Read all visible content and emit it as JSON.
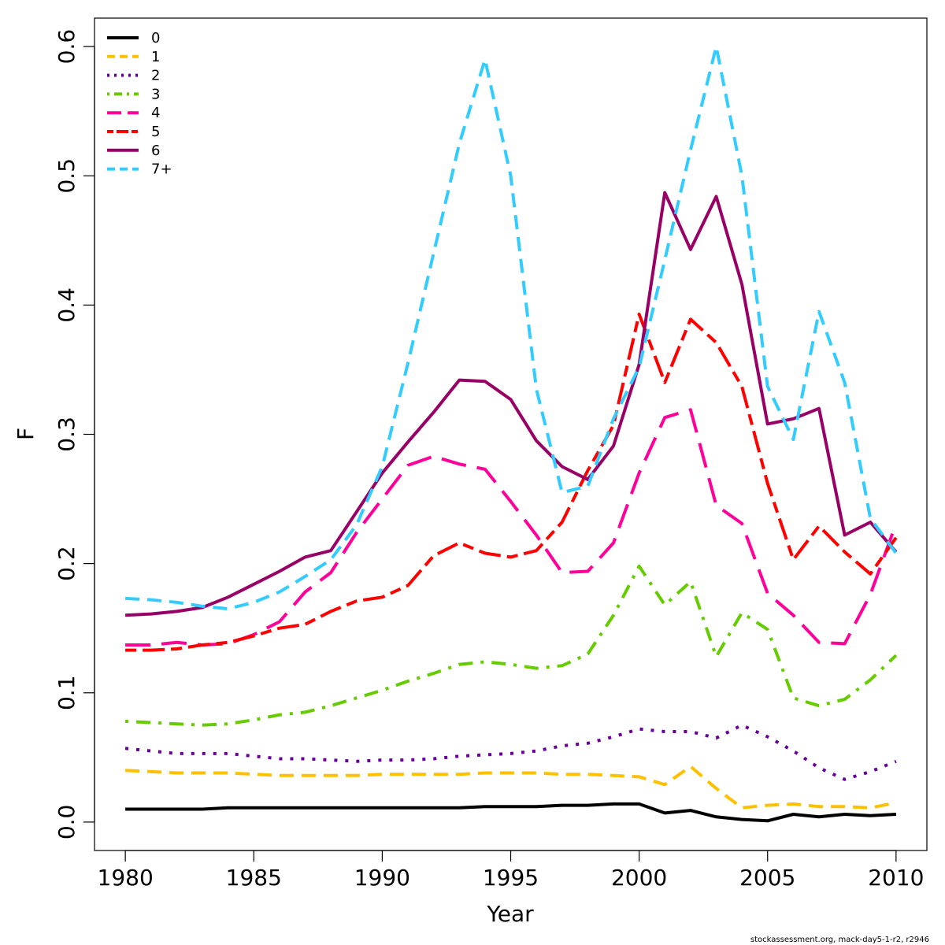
{
  "chart_data": {
    "type": "line",
    "xlabel": "Year",
    "ylabel": "F",
    "xlim": [
      1978.8,
      2011.2
    ],
    "ylim": [
      -0.022,
      0.622
    ],
    "x_ticks": [
      1980,
      1985,
      1990,
      1995,
      2000,
      2005,
      2010
    ],
    "y_ticks": [
      0.0,
      0.1,
      0.2,
      0.3,
      0.4,
      0.5,
      0.6
    ],
    "y_tick_labels": [
      "0.0",
      "0.1",
      "0.2",
      "0.3",
      "0.4",
      "0.5",
      "0.6"
    ],
    "grid": false,
    "legend_position": "top-left",
    "x": [
      1980,
      1981,
      1982,
      1983,
      1984,
      1985,
      1986,
      1987,
      1988,
      1989,
      1990,
      1991,
      1992,
      1993,
      1994,
      1995,
      1996,
      1997,
      1998,
      1999,
      2000,
      2001,
      2002,
      2003,
      2004,
      2005,
      2006,
      2007,
      2008,
      2009,
      2010
    ],
    "series": [
      {
        "name": "0",
        "color": "#000000",
        "dash": "solid",
        "values": [
          0.01,
          0.01,
          0.01,
          0.01,
          0.011,
          0.011,
          0.011,
          0.011,
          0.011,
          0.011,
          0.011,
          0.011,
          0.011,
          0.011,
          0.012,
          0.012,
          0.012,
          0.013,
          0.013,
          0.014,
          0.014,
          0.007,
          0.009,
          0.004,
          0.002,
          0.001,
          0.006,
          0.004,
          0.006,
          0.005,
          0.006
        ]
      },
      {
        "name": "1",
        "color": "#FFC000",
        "dash": "dashed",
        "values": [
          0.04,
          0.039,
          0.038,
          0.038,
          0.038,
          0.037,
          0.036,
          0.036,
          0.036,
          0.036,
          0.037,
          0.037,
          0.037,
          0.037,
          0.038,
          0.038,
          0.038,
          0.037,
          0.037,
          0.036,
          0.035,
          0.029,
          0.043,
          0.026,
          0.011,
          0.013,
          0.014,
          0.012,
          0.012,
          0.011,
          0.015
        ]
      },
      {
        "name": "2",
        "color": "#660099",
        "dash": "dotted",
        "values": [
          0.057,
          0.055,
          0.053,
          0.053,
          0.053,
          0.051,
          0.049,
          0.049,
          0.048,
          0.047,
          0.048,
          0.048,
          0.049,
          0.051,
          0.052,
          0.053,
          0.055,
          0.059,
          0.061,
          0.066,
          0.072,
          0.07,
          0.07,
          0.065,
          0.075,
          0.066,
          0.055,
          0.042,
          0.033,
          0.039,
          0.047
        ]
      },
      {
        "name": "3",
        "color": "#66CC00",
        "dash": "dotdash",
        "values": [
          0.078,
          0.077,
          0.076,
          0.075,
          0.076,
          0.079,
          0.083,
          0.085,
          0.09,
          0.096,
          0.102,
          0.109,
          0.115,
          0.122,
          0.124,
          0.122,
          0.119,
          0.121,
          0.13,
          0.16,
          0.198,
          0.168,
          0.186,
          0.128,
          0.162,
          0.149,
          0.096,
          0.09,
          0.095,
          0.11,
          0.129
        ]
      },
      {
        "name": "4",
        "color": "#FF0099",
        "dash": "longdash",
        "values": [
          0.137,
          0.137,
          0.139,
          0.137,
          0.138,
          0.145,
          0.155,
          0.178,
          0.193,
          0.224,
          0.25,
          0.276,
          0.283,
          0.277,
          0.273,
          0.248,
          0.222,
          0.193,
          0.194,
          0.216,
          0.27,
          0.313,
          0.319,
          0.245,
          0.231,
          0.177,
          0.16,
          0.139,
          0.138,
          0.176,
          0.231
        ]
      },
      {
        "name": "5",
        "color": "#FF0000",
        "dash": "twodash",
        "values": [
          0.133,
          0.133,
          0.134,
          0.137,
          0.139,
          0.144,
          0.15,
          0.153,
          0.163,
          0.171,
          0.174,
          0.183,
          0.206,
          0.216,
          0.208,
          0.205,
          0.21,
          0.232,
          0.272,
          0.307,
          0.393,
          0.34,
          0.389,
          0.371,
          0.337,
          0.262,
          0.203,
          0.229,
          0.209,
          0.192,
          0.22
        ]
      },
      {
        "name": "6",
        "color": "#990066",
        "dash": "solid",
        "values": [
          0.16,
          0.161,
          0.163,
          0.166,
          0.174,
          0.184,
          0.194,
          0.205,
          0.21,
          0.24,
          0.27,
          0.294,
          0.317,
          0.342,
          0.341,
          0.327,
          0.295,
          0.275,
          0.265,
          0.291,
          0.354,
          0.487,
          0.443,
          0.484,
          0.416,
          0.308,
          0.312,
          0.32,
          0.222,
          0.232,
          0.209
        ]
      },
      {
        "name": "7+",
        "color": "#33CCFF",
        "dash": "dashed",
        "values": [
          0.173,
          0.172,
          0.17,
          0.167,
          0.165,
          0.17,
          0.178,
          0.19,
          0.203,
          0.23,
          0.275,
          0.355,
          0.44,
          0.525,
          0.59,
          0.5,
          0.335,
          0.255,
          0.26,
          0.312,
          0.352,
          0.435,
          0.52,
          0.6,
          0.5,
          0.337,
          0.296,
          0.395,
          0.34,
          0.235,
          0.208
        ]
      }
    ]
  },
  "footer": {
    "text": "stockassessment.org, mack-day5-1-r2, r2946"
  }
}
